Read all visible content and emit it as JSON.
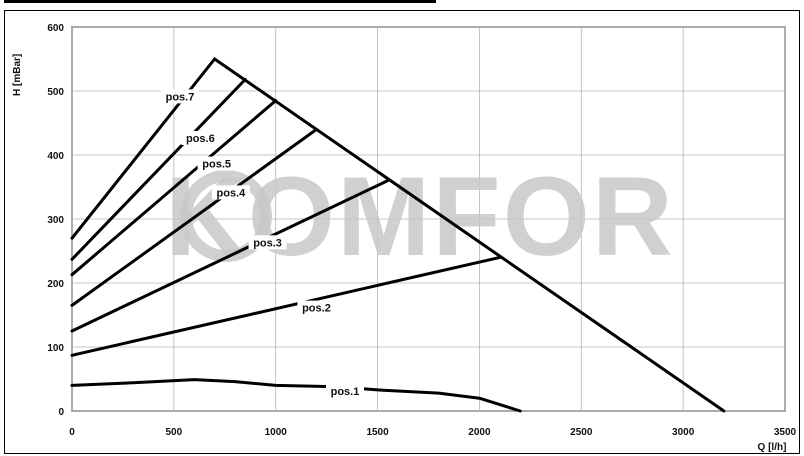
{
  "watermark": {
    "text": "KOMFOR",
    "color": "#c8c8c8"
  },
  "chart_data": {
    "type": "line",
    "xlabel": "Q [l/h]",
    "ylabel": "H [mBar]",
    "xlim": [
      0,
      3500
    ],
    "ylim": [
      0,
      600
    ],
    "xticks": [
      0,
      500,
      1000,
      1500,
      2000,
      2500,
      3000,
      3500
    ],
    "yticks": [
      0,
      100,
      200,
      300,
      400,
      500,
      600
    ],
    "grid": true,
    "line_color": "#000000",
    "series": [
      {
        "name": "pos.1",
        "x": [
          0,
          300,
          600,
          800,
          1000,
          1300,
          1500,
          1800,
          2000,
          2100,
          2200
        ],
        "y": [
          40,
          44,
          49,
          46,
          40,
          38,
          33,
          28,
          20,
          10,
          0
        ]
      },
      {
        "name": "pos.2",
        "x": [
          0,
          2100
        ],
        "y": [
          87,
          240
        ]
      },
      {
        "name": "pos.3",
        "x": [
          0,
          1550
        ],
        "y": [
          125,
          360
        ]
      },
      {
        "name": "pos.4",
        "x": [
          0,
          1200
        ],
        "y": [
          165,
          440
        ]
      },
      {
        "name": "pos.5",
        "x": [
          0,
          1000
        ],
        "y": [
          213,
          485
        ]
      },
      {
        "name": "pos.6",
        "x": [
          0,
          850
        ],
        "y": [
          237,
          518
        ]
      },
      {
        "name": "pos.7",
        "x": [
          0,
          700
        ],
        "y": [
          270,
          550
        ]
      },
      {
        "name": "",
        "x": [
          700,
          3200
        ],
        "y": [
          550,
          0
        ]
      }
    ],
    "labels": [
      {
        "text": "pos.7",
        "x": 530,
        "y": 490
      },
      {
        "text": "pos.6",
        "x": 630,
        "y": 425
      },
      {
        "text": "pos.5",
        "x": 710,
        "y": 385
      },
      {
        "text": "pos.4",
        "x": 780,
        "y": 340
      },
      {
        "text": "pos.3",
        "x": 960,
        "y": 262
      },
      {
        "text": "pos.2",
        "x": 1200,
        "y": 160
      },
      {
        "text": "pos.1",
        "x": 1340,
        "y": 30
      }
    ]
  }
}
